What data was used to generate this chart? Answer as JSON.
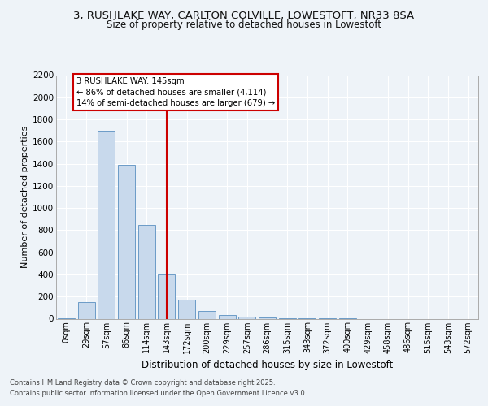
{
  "title_line1": "3, RUSHLAKE WAY, CARLTON COLVILLE, LOWESTOFT, NR33 8SA",
  "title_line2": "Size of property relative to detached houses in Lowestoft",
  "xlabel": "Distribution of detached houses by size in Lowestoft",
  "ylabel": "Number of detached properties",
  "footer_line1": "Contains HM Land Registry data © Crown copyright and database right 2025.",
  "footer_line2": "Contains public sector information licensed under the Open Government Licence v3.0.",
  "bar_labels": [
    "0sqm",
    "29sqm",
    "57sqm",
    "86sqm",
    "114sqm",
    "143sqm",
    "172sqm",
    "200sqm",
    "229sqm",
    "257sqm",
    "286sqm",
    "315sqm",
    "343sqm",
    "372sqm",
    "400sqm",
    "429sqm",
    "458sqm",
    "486sqm",
    "515sqm",
    "543sqm",
    "572sqm"
  ],
  "bar_values": [
    5,
    150,
    1700,
    1390,
    850,
    400,
    175,
    70,
    30,
    20,
    10,
    5,
    3,
    2,
    1,
    0,
    0,
    0,
    0,
    0,
    0
  ],
  "bar_color": "#c8d9ec",
  "bar_edge_color": "#5a8fc0",
  "vline_x": 5,
  "vline_color": "#cc0000",
  "ylim": [
    0,
    2200
  ],
  "yticks": [
    0,
    200,
    400,
    600,
    800,
    1000,
    1200,
    1400,
    1600,
    1800,
    2000,
    2200
  ],
  "annotation_title": "3 RUSHLAKE WAY: 145sqm",
  "annotation_line1": "← 86% of detached houses are smaller (4,114)",
  "annotation_line2": "14% of semi-detached houses are larger (679) →",
  "annotation_box_color": "#cc0000",
  "bg_color": "#eef3f8",
  "grid_color": "#ffffff",
  "title_fontsize": 9.5,
  "subtitle_fontsize": 8.5
}
